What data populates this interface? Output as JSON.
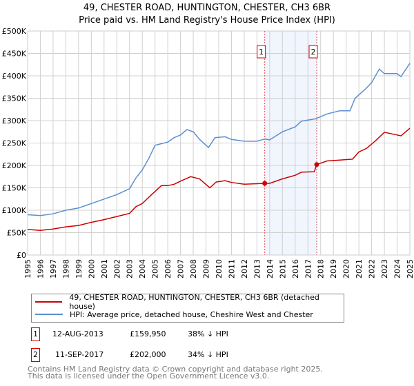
{
  "title_line1": "49, CHESTER ROAD, HUNTINGTON, CHESTER, CH3 6BR",
  "title_line2": "Price paid vs. HM Land Registry's House Price Index (HPI)",
  "chart_data": {
    "type": "line",
    "title": "49, CHESTER ROAD, HUNTINGTON, CHESTER, CH3 6BR — Price paid vs. HM Land Registry's House Price Index (HPI)",
    "xlim": [
      1995,
      2025
    ],
    "ylim": [
      0,
      500000
    ],
    "grid": true,
    "x_ticks": [
      "1995",
      "1996",
      "1997",
      "1998",
      "1999",
      "2000",
      "2001",
      "2002",
      "2003",
      "2004",
      "2005",
      "2006",
      "2007",
      "2008",
      "2009",
      "2010",
      "2011",
      "2012",
      "2013",
      "2014",
      "2015",
      "2016",
      "2017",
      "2018",
      "2019",
      "2020",
      "2021",
      "2022",
      "2023",
      "2024",
      "2025"
    ],
    "y_ticks": [
      {
        "value": 0,
        "label": "£0"
      },
      {
        "value": 50000,
        "label": "£50K"
      },
      {
        "value": 100000,
        "label": "£100K"
      },
      {
        "value": 150000,
        "label": "£150K"
      },
      {
        "value": 200000,
        "label": "£200K"
      },
      {
        "value": 250000,
        "label": "£250K"
      },
      {
        "value": 300000,
        "label": "£300K"
      },
      {
        "value": 350000,
        "label": "£350K"
      },
      {
        "value": 400000,
        "label": "£400K"
      },
      {
        "value": 450000,
        "label": "£450K"
      },
      {
        "value": 500000,
        "label": "£500K"
      }
    ],
    "shaded_range": [
      2013.61,
      2017.69
    ],
    "series": [
      {
        "name": "49, CHESTER ROAD, HUNTINGTON, CHESTER, CH3 6BR (detached house)",
        "color": "#cc0000",
        "x": [
          1995,
          1996,
          1997,
          1998,
          1999,
          2000,
          2001,
          2002,
          2003,
          2003.5,
          2004,
          2004.7,
          2005.5,
          2006,
          2006.5,
          2007,
          2007.8,
          2008.5,
          2009.3,
          2009.8,
          2010.5,
          2011,
          2012,
          2013.61,
          2014,
          2015,
          2016,
          2016.5,
          2017.5,
          2017.69,
          2018.5,
          2019.5,
          2020.5,
          2021,
          2021.6,
          2022.3,
          2023,
          2024,
          2024.3,
          2025
        ],
        "y": [
          57000,
          55000,
          58000,
          63000,
          66000,
          73000,
          79000,
          86000,
          93000,
          108000,
          115000,
          134000,
          155000,
          155000,
          158000,
          165000,
          175000,
          170000,
          150000,
          163000,
          166000,
          162000,
          158000,
          159950,
          160000,
          170000,
          178000,
          185000,
          186000,
          202000,
          210000,
          212000,
          214000,
          230000,
          238000,
          255000,
          274000,
          268000,
          266000,
          283000
        ]
      },
      {
        "name": "HPI: Average price, detached house, Cheshire West and Chester",
        "color": "#5b8fd0",
        "x": [
          1995,
          1996,
          1997,
          1998,
          1999,
          2000,
          2001,
          2002,
          2003,
          2003.5,
          2004,
          2004.5,
          2005,
          2006,
          2006.5,
          2007,
          2007.5,
          2008,
          2008.5,
          2009.2,
          2009.7,
          2010.5,
          2011,
          2012,
          2013,
          2013.6,
          2014,
          2015,
          2016,
          2016.5,
          2017.6,
          2018.5,
          2019.5,
          2020.3,
          2020.7,
          2021.5,
          2022,
          2022.6,
          2023,
          2024,
          2024.3,
          2025
        ],
        "y": [
          90000,
          88000,
          92000,
          100000,
          105000,
          115000,
          125000,
          135000,
          148000,
          172000,
          190000,
          215000,
          245000,
          252000,
          262000,
          268000,
          280000,
          275000,
          258000,
          240000,
          262000,
          264000,
          258000,
          254000,
          254000,
          259000,
          257000,
          275000,
          286000,
          299000,
          304000,
          315000,
          322000,
          322000,
          350000,
          370000,
          385000,
          415000,
          405000,
          405000,
          398000,
          428000
        ]
      }
    ],
    "annotations": [
      {
        "label": "1",
        "x": 2013.61,
        "y": 159950
      },
      {
        "label": "2",
        "x": 2017.69,
        "y": 202000
      }
    ]
  },
  "legend": {
    "items": [
      {
        "label": "49, CHESTER ROAD, HUNTINGTON, CHESTER, CH3 6BR (detached house)",
        "color": "#cc0000"
      },
      {
        "label": "HPI: Average price, detached house, Cheshire West and Chester",
        "color": "#5b8fd0"
      }
    ]
  },
  "transactions": [
    {
      "num": "1",
      "date": "12-AUG-2013",
      "price": "£159,950",
      "delta": "38% ↓ HPI"
    },
    {
      "num": "2",
      "date": "11-SEP-2017",
      "price": "£202,000",
      "delta": "34% ↓ HPI"
    }
  ],
  "footer": {
    "line1": "Contains HM Land Registry data © Crown copyright and database right 2025.",
    "line2": "This data is licensed under the Open Government Licence v3.0."
  }
}
